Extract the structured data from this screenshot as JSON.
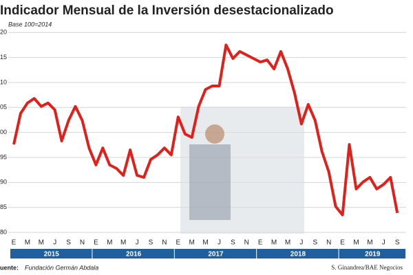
{
  "chart_data": {
    "type": "line",
    "title": "Indicador Mensual de la Inversión desestacionalizado",
    "subtitle": "Base 100=2014",
    "source_label": "uente:",
    "source": "Fundación Germán Abdala",
    "credit": "S. Ginandrea/BAE Negocios",
    "years": [
      "2015",
      "2016",
      "2017",
      "2018",
      "2019"
    ],
    "categories": [
      "E",
      null,
      "M",
      null,
      "M",
      null,
      "J",
      null,
      "S",
      null,
      "N",
      null,
      "E",
      null,
      "M",
      null,
      "M",
      null,
      "J",
      null,
      "S",
      null,
      "N",
      null,
      "E",
      null,
      "M",
      null,
      "M",
      null,
      "J",
      null,
      "S",
      null,
      "N",
      null,
      "E",
      null,
      "M",
      null,
      "M",
      null,
      "J",
      null,
      "S",
      null,
      "N",
      null,
      "E",
      null,
      "M",
      null,
      "M",
      null,
      "J",
      null,
      "S"
    ],
    "series": [
      {
        "color": "#e0201b",
        "values": [
          97.6,
          103.8,
          105.9,
          106.8,
          105.2,
          105.9,
          104.5,
          98.3,
          102.4,
          105.2,
          102.4,
          96.9,
          93.5,
          96.9,
          93.5,
          92.8,
          91.4,
          96.5,
          91.4,
          91.0,
          94.6,
          95.5,
          96.9,
          95.5,
          103.1,
          99.7,
          99.0,
          105.2,
          108.6,
          109.3,
          109.3,
          117.5,
          114.8,
          116.2,
          115.5,
          114.8,
          114.1,
          114.5,
          112.7,
          116.2,
          112.7,
          107.9,
          101.7,
          105.6,
          102.4,
          96.2,
          92.1,
          85.2,
          83.5,
          97.6,
          88.7,
          90.1,
          91.0,
          88.7,
          89.6,
          91.0,
          83.9
        ]
      }
    ],
    "ylim": [
      80,
      121
    ],
    "yticks": [
      {
        "value": 120,
        "label": "20"
      },
      {
        "value": 115,
        "label": "15"
      },
      {
        "value": 110,
        "label": "10"
      },
      {
        "value": 105,
        "label": "05"
      },
      {
        "value": 100,
        "label": "00"
      },
      95,
      90,
      85,
      80
    ],
    "grid": true,
    "year_bar_color": "#1f5fa0"
  }
}
